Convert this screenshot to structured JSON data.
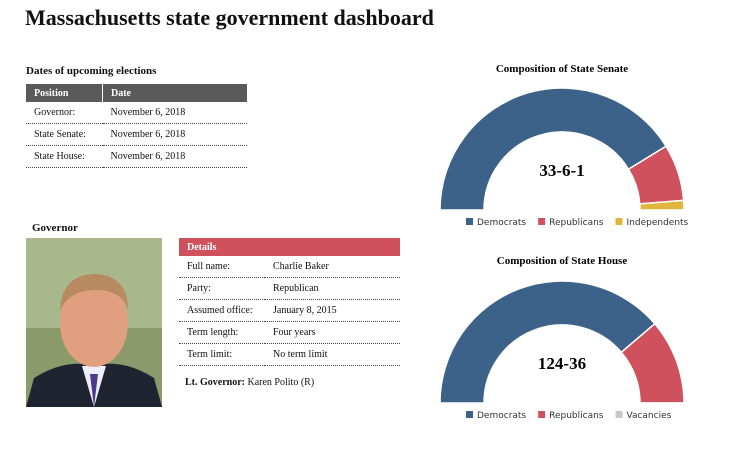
{
  "header": {
    "title": "Massachusetts state government dashboard"
  },
  "elections": {
    "title": "Dates of upcoming elections",
    "columns": [
      "Position",
      "Date"
    ],
    "rows": [
      [
        "Governor:",
        "November 6, 2018"
      ],
      [
        "State Senate:",
        "November 6, 2018"
      ],
      [
        "State House:",
        "November 6, 2018"
      ]
    ]
  },
  "governor": {
    "title": "Governor",
    "details_title": "Details",
    "rows": [
      [
        "Full name:",
        "Charlie Baker"
      ],
      [
        "Party:",
        "Republican"
      ],
      [
        "Assumed office:",
        "January 8, 2015"
      ],
      [
        "Term length:",
        "Four years"
      ],
      [
        "Term limit:",
        "No term limit"
      ]
    ],
    "lt_governor_label": "Lt. Governor:",
    "lt_governor": "Karen Polito (R)"
  },
  "chart_data": [
    {
      "type": "half-donut",
      "title": "Composition of State Senate",
      "center_label": "33-6-1",
      "categories": [
        "Democrats",
        "Republicans",
        "Independents"
      ],
      "values": [
        33,
        6,
        1
      ],
      "colors": [
        "#3c6289",
        "#cf515e",
        "#e0b53c"
      ]
    },
    {
      "type": "half-donut",
      "title": "Composition of State House",
      "center_label": "124-36",
      "categories": [
        "Democrats",
        "Republicans",
        "Vacancies"
      ],
      "values": [
        124,
        36,
        0
      ],
      "colors": [
        "#3c6289",
        "#cf515e",
        "#c8c8c8"
      ]
    }
  ]
}
